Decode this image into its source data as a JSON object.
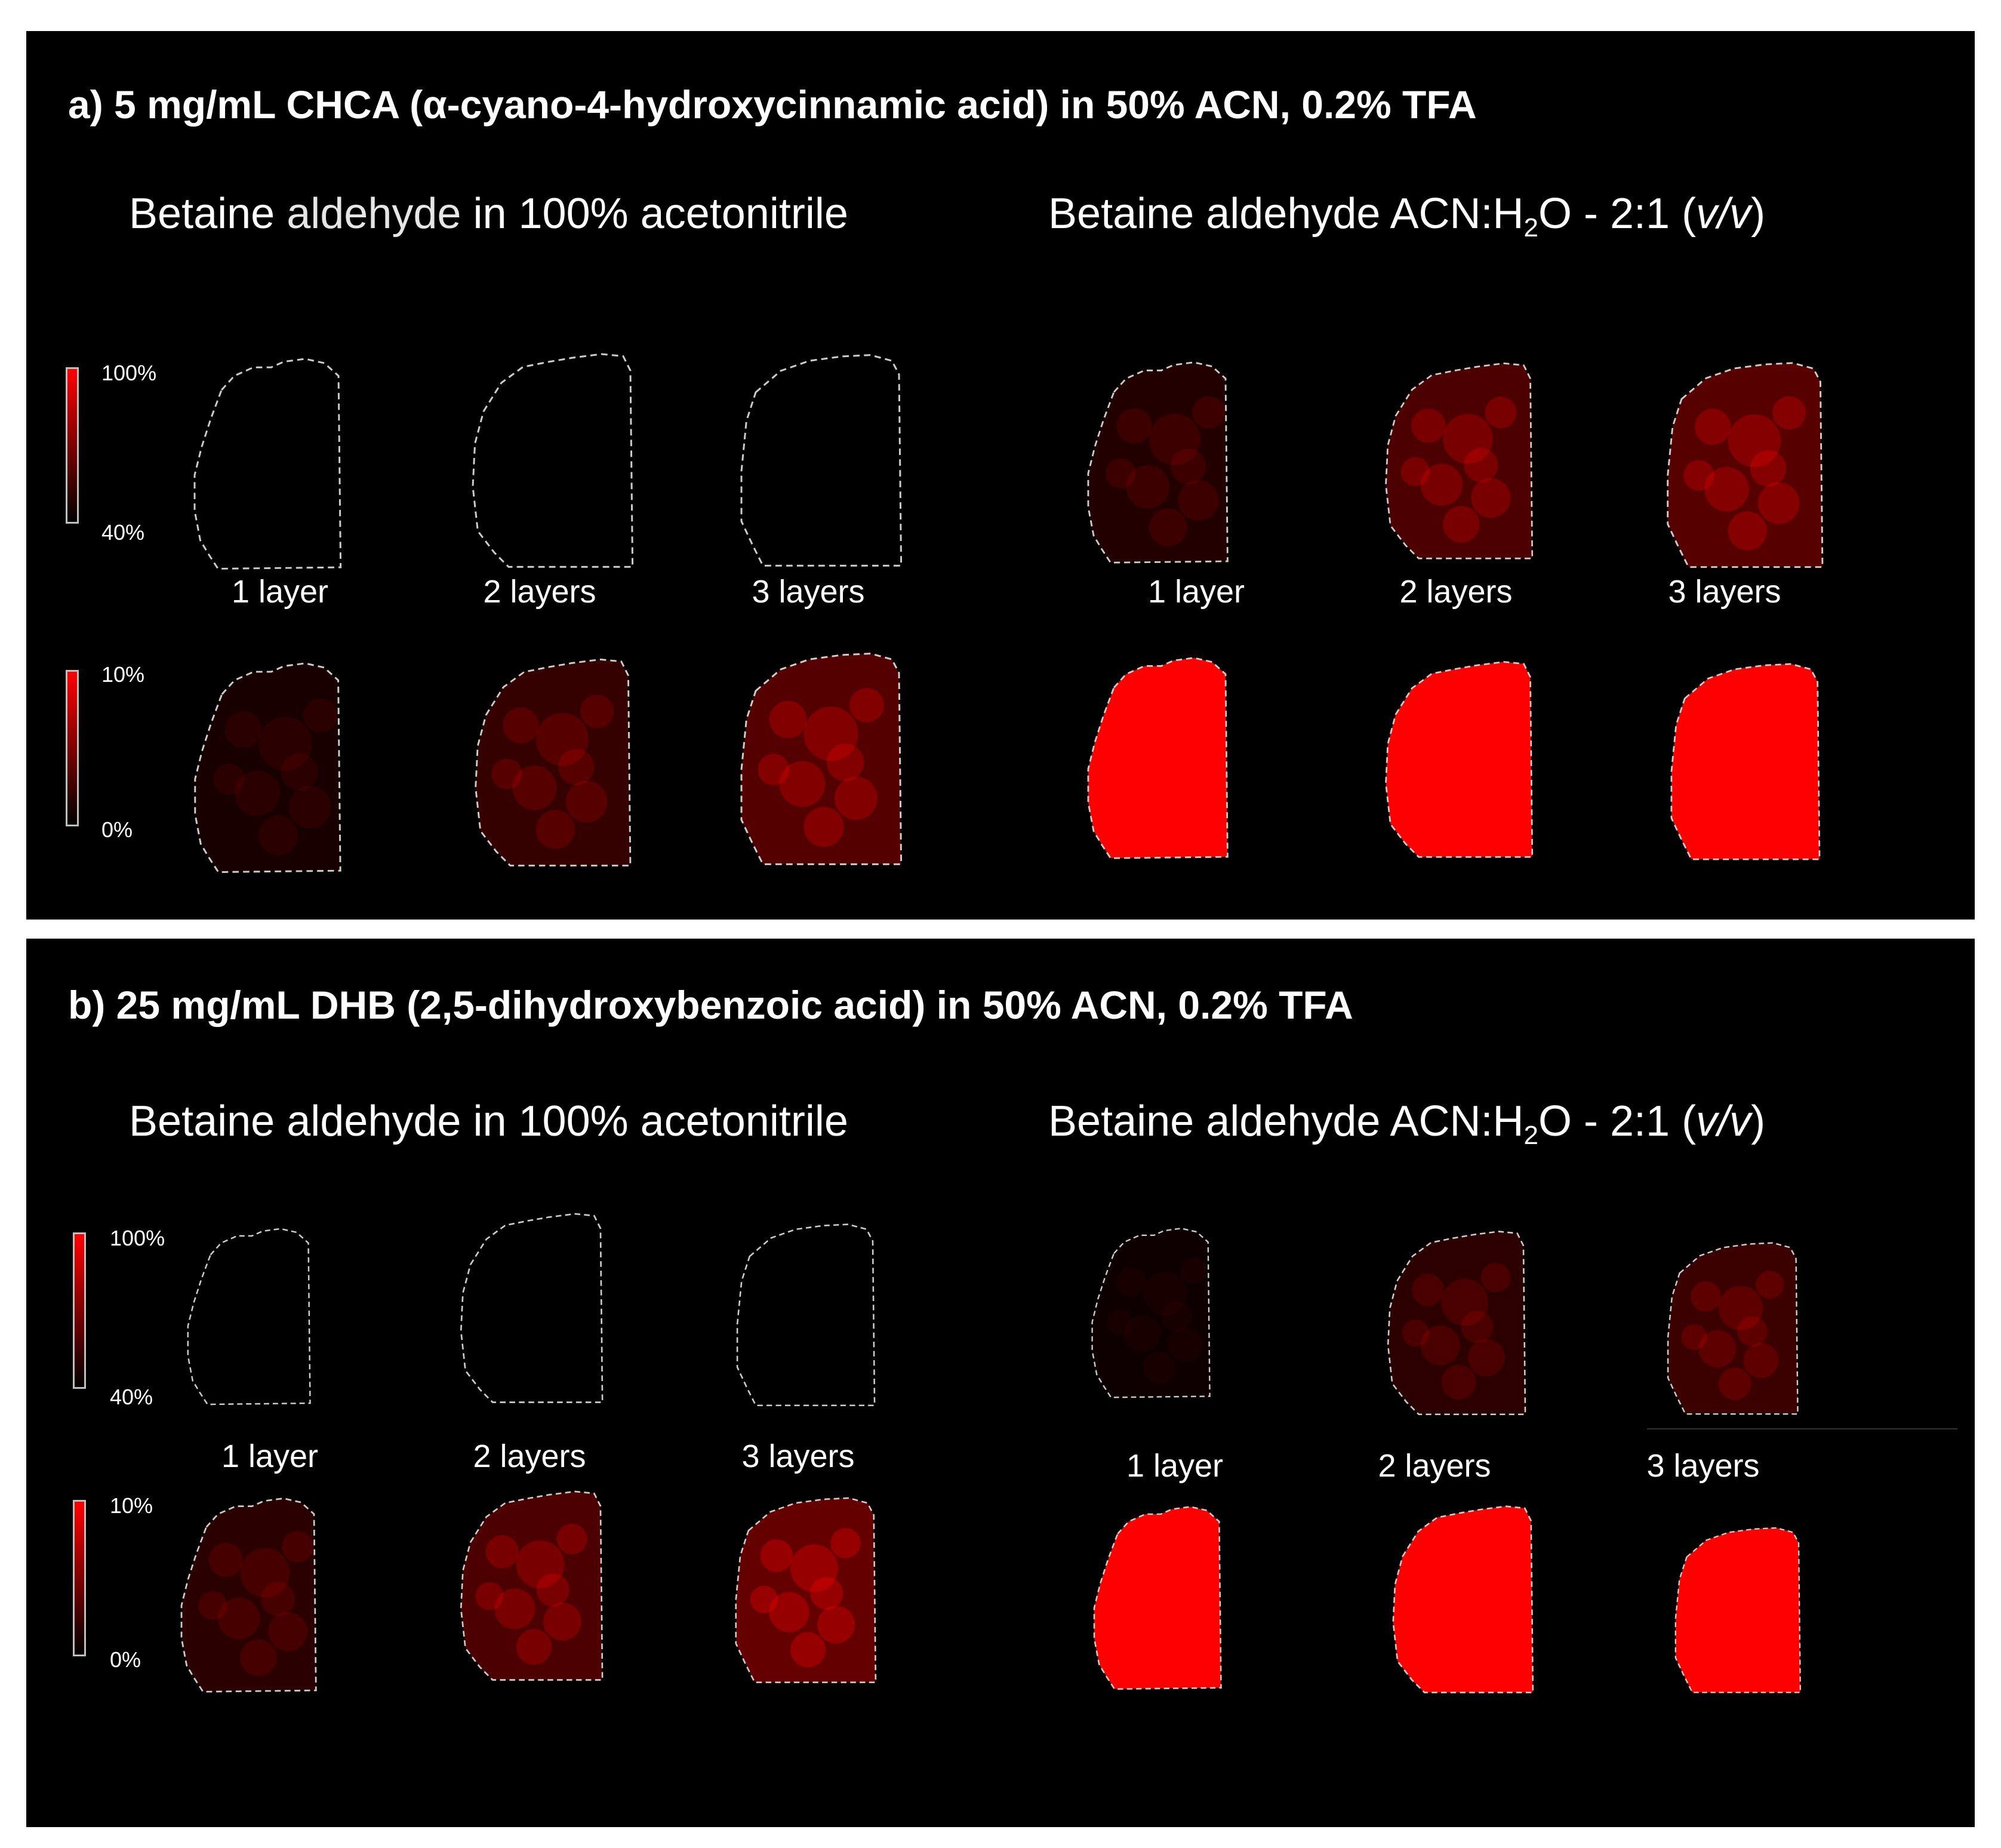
{
  "panels": [
    {
      "id": "a",
      "title": "a) 5 mg/mL CHCA (α-cyano-4-hydroxycinnamic acid) in 50% ACN, 0.2% TFA",
      "group_left": {
        "prefix": "Betaine ",
        "mid": "aldehyde",
        "suffix": " in 100% acetonitrile"
      },
      "group_right": {
        "prefix": "Betaine aldehyde ACN:H",
        "sub": "2",
        "mid": "O - 2:1 (",
        "ital": "v/v",
        "suffix": ")"
      },
      "scale_top": {
        "max": "100%",
        "min": "40%"
      },
      "scale_bottom": {
        "max": "10%",
        "min": "0%"
      },
      "layer_labels_left": [
        "1 layer",
        "2 layers",
        "3 layers"
      ],
      "layer_labels_right": [
        "1 layer",
        "2 layers",
        "3 layers"
      ]
    },
    {
      "id": "b",
      "title": "b) 25 mg/mL DHB (2,5-dihydroxybenzoic acid) in 50% ACN, 0.2% TFA",
      "group_left": {
        "prefix": "Betaine ",
        "mid": "aldehyde",
        "suffix": " in 100% acetonitrile"
      },
      "group_right": {
        "prefix": "Betaine aldehyde ACN:H",
        "sub": "2",
        "mid": "O - 2:1 (",
        "ital": "v/v",
        "suffix": ")"
      },
      "scale_top": {
        "max": "100%",
        "min": "40%"
      },
      "scale_bottom": {
        "max": "10%",
        "min": "0%"
      },
      "layer_labels_left": [
        "1 layer",
        "2 layers",
        "3 layers"
      ],
      "layer_labels_right": [
        "1 layer",
        "2 layers",
        "3 layers"
      ]
    }
  ],
  "colors": {
    "signal": "#ff0000",
    "background": "#000000",
    "outline": "#cccccc"
  },
  "signal_levels": {
    "a_top": [
      0.0,
      0.0,
      0.0,
      0.25,
      0.55,
      0.62
    ],
    "a_bottom": [
      0.18,
      0.38,
      0.6,
      1.0,
      1.0,
      1.0
    ],
    "b_top": [
      0.0,
      0.0,
      0.0,
      0.1,
      0.32,
      0.42
    ],
    "b_bottom": [
      0.3,
      0.55,
      0.72,
      1.0,
      1.0,
      1.0
    ]
  }
}
